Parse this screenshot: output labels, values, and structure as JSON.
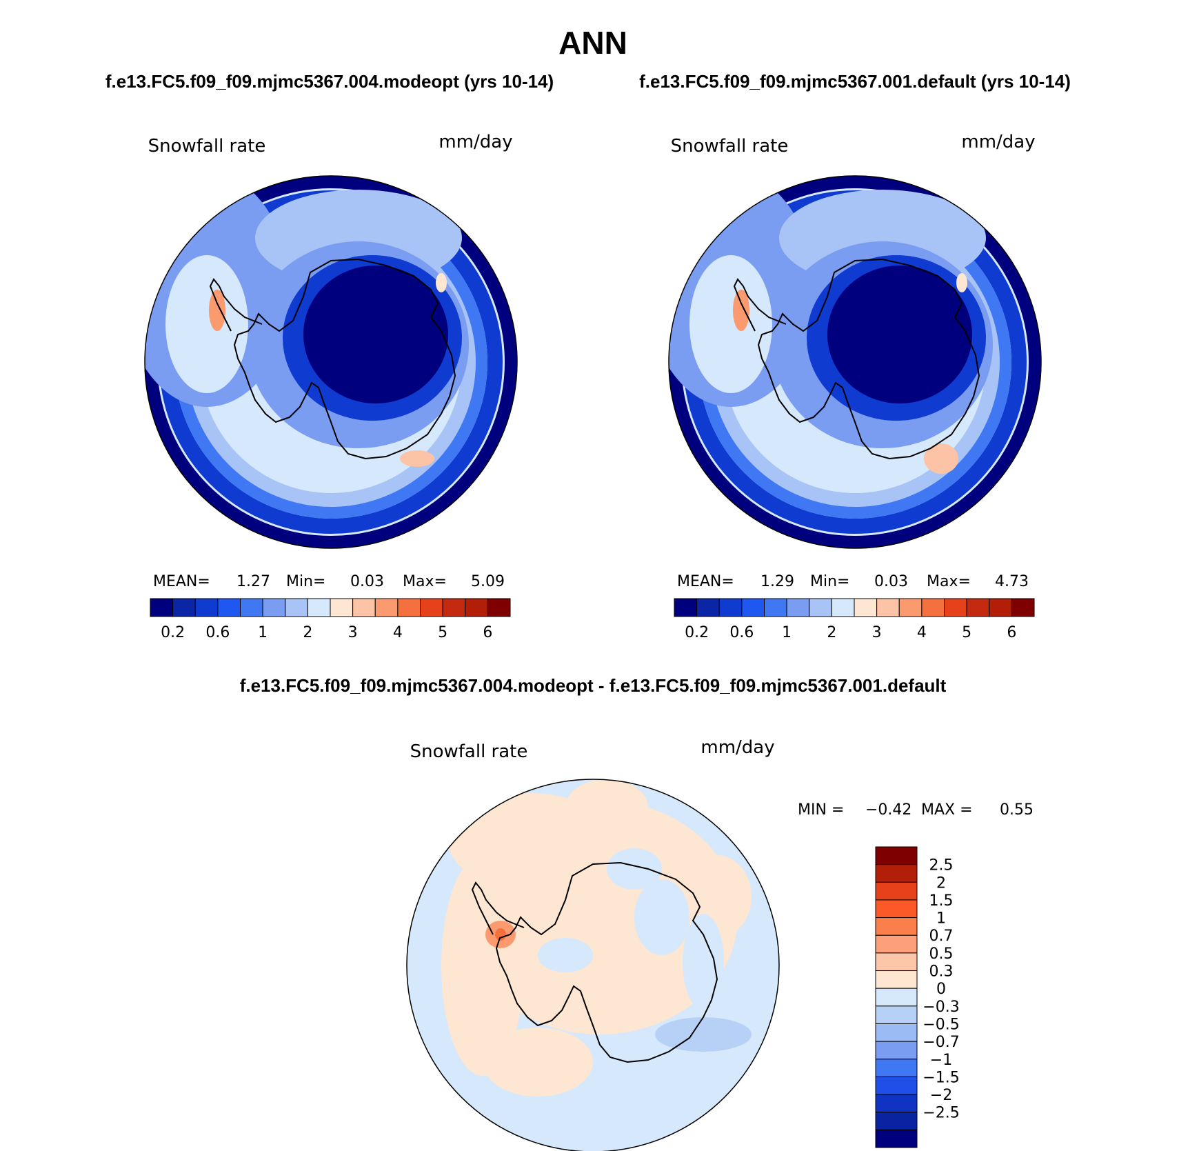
{
  "figure": {
    "title": "ANN",
    "case_a_title": "f.e13.FC5.f09_f09.mjmc5367.004.modeopt (yrs 10-14)",
    "case_b_title": "f.e13.FC5.f09_f09.mjmc5367.001.default (yrs 10-14)",
    "diff_title": "f.e13.FC5.f09_f09.mjmc5367.004.modeopt - f.e13.FC5.f09_f09.mjmc5367.001.default"
  },
  "chart_data": [
    {
      "type": "heatmap",
      "projection": "south-polar-stereographic",
      "variable": "Snowfall rate",
      "units": "mm/day",
      "stats": {
        "mean_label": "MEAN=",
        "mean": "1.27",
        "min_label": "Min=",
        "min": "0.03",
        "max_label": "Max=",
        "max": "5.09"
      },
      "colorbar": {
        "orientation": "horizontal",
        "levels": [
          0.2,
          0.4,
          0.6,
          0.8,
          1,
          1.5,
          2,
          2.5,
          3,
          3.5,
          4,
          4.5,
          5,
          5.5,
          6
        ],
        "tick_labels": [
          "0.2",
          "0.6",
          "1",
          "2",
          "3",
          "4",
          "5",
          "6"
        ],
        "colors": [
          "#00007f",
          "#0a25a6",
          "#0f3bd1",
          "#1f58f0",
          "#3f78f2",
          "#7a9df2",
          "#a8c3f5",
          "#d6e8fb",
          "#fde6d2",
          "#fcc3a6",
          "#fb9a6f",
          "#f5703f",
          "#e5421b",
          "#c42a10",
          "#b31e09",
          "#7f0000"
        ]
      }
    },
    {
      "type": "heatmap",
      "projection": "south-polar-stereographic",
      "variable": "Snowfall rate",
      "units": "mm/day",
      "stats": {
        "mean_label": "MEAN=",
        "mean": "1.29",
        "min_label": "Min=",
        "min": "0.03",
        "max_label": "Max=",
        "max": "4.73"
      },
      "colorbar": {
        "orientation": "horizontal",
        "levels": [
          0.2,
          0.4,
          0.6,
          0.8,
          1,
          1.5,
          2,
          2.5,
          3,
          3.5,
          4,
          4.5,
          5,
          5.5,
          6
        ],
        "tick_labels": [
          "0.2",
          "0.6",
          "1",
          "2",
          "3",
          "4",
          "5",
          "6"
        ],
        "colors": [
          "#00007f",
          "#0a25a6",
          "#0f3bd1",
          "#1f58f0",
          "#3f78f2",
          "#7a9df2",
          "#a8c3f5",
          "#d6e8fb",
          "#fde6d2",
          "#fcc3a6",
          "#fb9a6f",
          "#f5703f",
          "#e5421b",
          "#c42a10",
          "#b31e09",
          "#7f0000"
        ]
      }
    },
    {
      "type": "heatmap",
      "projection": "south-polar-stereographic",
      "variable": "Snowfall rate",
      "units": "mm/day",
      "stats": {
        "min_label": "MIN =",
        "min": "−0.42",
        "max_label": "MAX =",
        "max": "0.55"
      },
      "colorbar": {
        "orientation": "vertical",
        "tick_labels": [
          "2.5",
          "2",
          "1.5",
          "1",
          "0.7",
          "0.5",
          "0.3",
          "0",
          "−0.3",
          "−0.5",
          "−0.7",
          "−1",
          "−1.5",
          "−2",
          "−2.5"
        ],
        "colors": [
          "#7f0000",
          "#b31e09",
          "#e5421b",
          "#fb5a28",
          "#fb7f4a",
          "#fba07a",
          "#fcc6ab",
          "#fde6d2",
          "#d6e8fb",
          "#b7d0f6",
          "#9bbbf4",
          "#7a9df2",
          "#3f78f2",
          "#1f4fe8",
          "#0f34c4",
          "#0a23a0",
          "#00007f"
        ]
      }
    }
  ]
}
